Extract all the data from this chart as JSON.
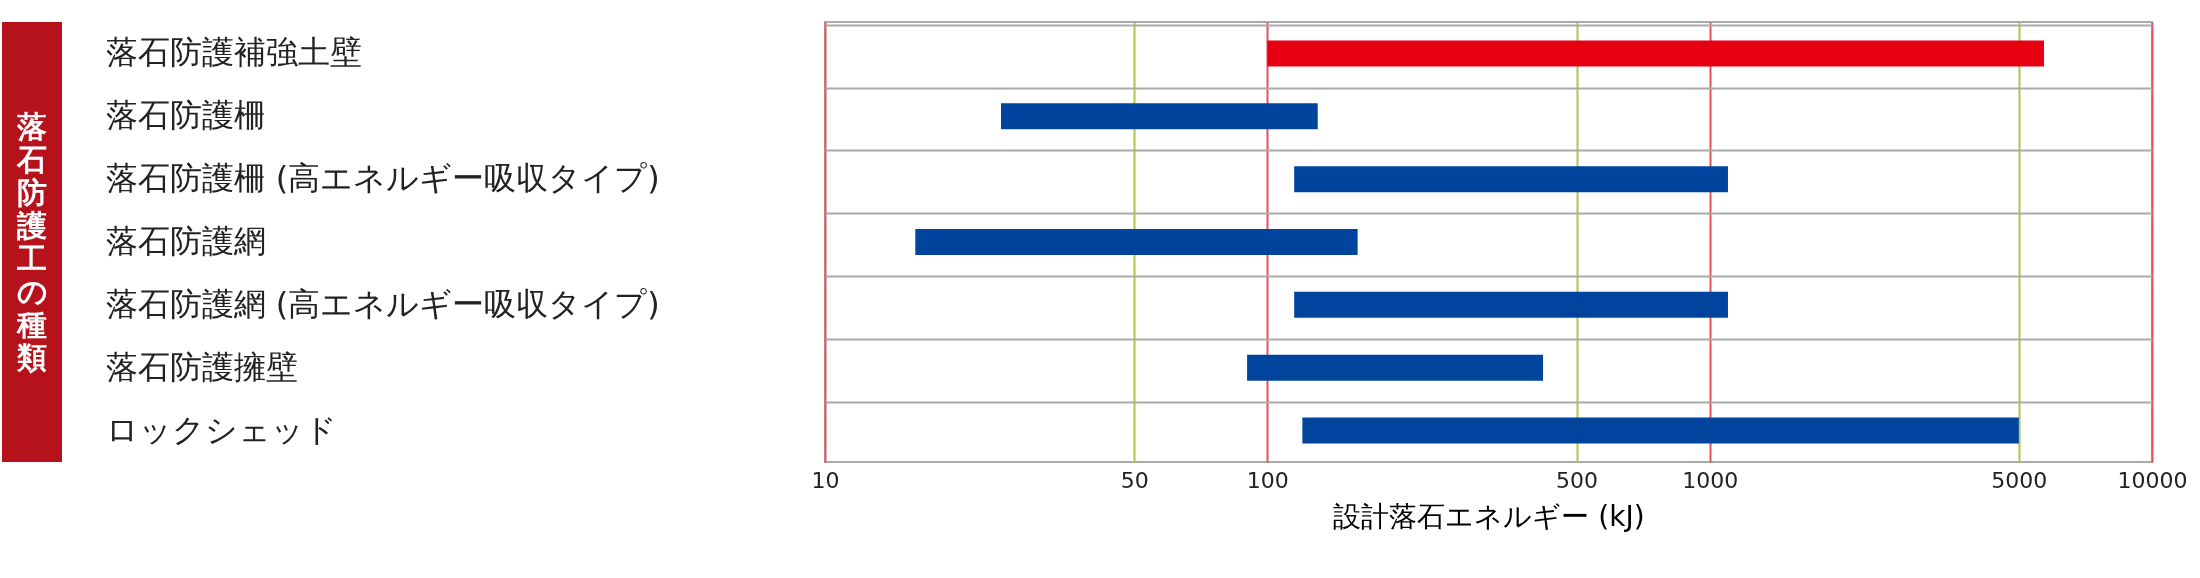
{
  "chart_data": {
    "type": "bar",
    "orientation": "horizontal",
    "ylabel": "落石防護工の種類",
    "xlabel": "設計落石エネルギー (kJ)",
    "categories": [
      "落石防護補強土壁",
      "落石防護柵",
      "落石防護柵 (高エネルギー吸収タイプ)",
      "落石防護網",
      "落石防護網 (高エネルギー吸収タイプ)",
      "落石防護擁壁",
      "ロックシェッド"
    ],
    "base": [
      100,
      25,
      115,
      16,
      115,
      90,
      120
    ],
    "values": [
      5600,
      105,
      985,
      144,
      985,
      330,
      4880
    ],
    "colors": [
      "#e60012",
      "#00449e",
      "#00449e",
      "#00449e",
      "#00449e",
      "#00449e",
      "#00449e"
    ],
    "log": "x",
    "xlim": [
      10,
      10000
    ],
    "xticks": [
      10,
      50,
      100,
      500,
      1000,
      5000,
      10000
    ],
    "grid": true
  }
}
